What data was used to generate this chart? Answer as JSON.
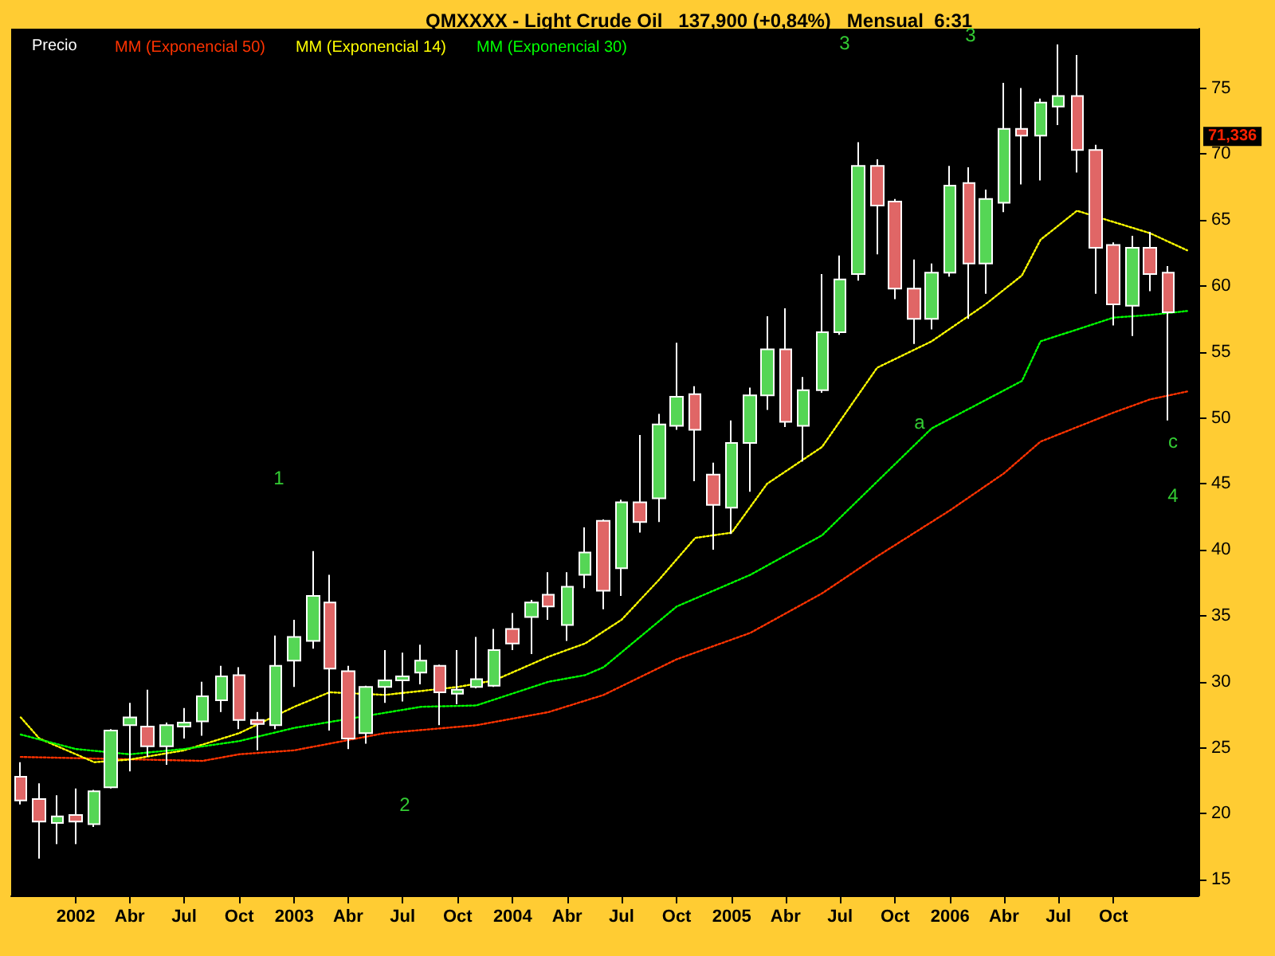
{
  "chart_data": {
    "type": "candlestick",
    "title": "QMXXXX - Light Crude Oil   137,900 (+0,84%)   Mensual  6:31",
    "x": [
      "2001-10",
      "2001-11",
      "2001-12",
      "2002-01",
      "2002-02",
      "2002-03",
      "2002-04",
      "2002-05",
      "2002-06",
      "2002-07",
      "2002-08",
      "2002-09",
      "2002-10",
      "2002-11",
      "2002-12",
      "2003-01",
      "2003-02",
      "2003-03",
      "2003-04",
      "2003-05",
      "2003-06",
      "2003-07",
      "2003-08",
      "2003-09",
      "2003-10",
      "2003-11",
      "2003-12",
      "2004-01",
      "2004-02",
      "2004-03",
      "2004-04",
      "2004-05",
      "2004-06",
      "2004-07",
      "2004-08",
      "2004-09",
      "2004-10",
      "2004-11",
      "2004-12",
      "2005-01",
      "2005-02",
      "2005-03",
      "2005-04",
      "2005-05",
      "2005-06",
      "2005-07",
      "2005-08",
      "2005-09",
      "2005-10",
      "2005-11",
      "2005-12",
      "2006-01",
      "2006-02",
      "2006-03",
      "2006-04",
      "2006-05",
      "2006-06",
      "2006-07",
      "2006-08",
      "2006-09",
      "2006-10",
      "2006-11",
      "2006-12",
      "2007-01"
    ],
    "ohlc": [
      [
        22.8,
        23.9,
        20.7,
        21.0
      ],
      [
        21.1,
        22.3,
        16.6,
        19.4
      ],
      [
        19.3,
        21.4,
        17.7,
        19.8
      ],
      [
        19.9,
        21.9,
        17.7,
        19.4
      ],
      [
        19.2,
        21.8,
        19.0,
        21.7
      ],
      [
        22.0,
        26.4,
        21.9,
        26.3
      ],
      [
        26.7,
        28.4,
        23.2,
        27.3
      ],
      [
        26.6,
        29.4,
        24.3,
        25.1
      ],
      [
        25.1,
        26.9,
        23.7,
        26.7
      ],
      [
        26.6,
        28.0,
        25.7,
        26.9
      ],
      [
        27.0,
        30.0,
        25.9,
        28.9
      ],
      [
        28.6,
        31.2,
        27.7,
        30.4
      ],
      [
        30.5,
        31.1,
        26.4,
        27.1
      ],
      [
        27.1,
        27.7,
        24.8,
        26.8
      ],
      [
        26.7,
        33.5,
        26.4,
        31.2
      ],
      [
        31.6,
        34.7,
        29.6,
        33.4
      ],
      [
        33.1,
        39.9,
        32.5,
        36.5
      ],
      [
        36.0,
        38.1,
        26.3,
        31.0
      ],
      [
        30.8,
        31.2,
        24.9,
        25.7
      ],
      [
        26.1,
        29.7,
        25.3,
        29.6
      ],
      [
        29.6,
        32.4,
        28.4,
        30.1
      ],
      [
        30.1,
        32.2,
        28.5,
        30.4
      ],
      [
        30.7,
        32.8,
        29.8,
        31.6
      ],
      [
        31.2,
        31.3,
        26.7,
        29.2
      ],
      [
        29.1,
        32.4,
        28.3,
        29.4
      ],
      [
        29.6,
        33.4,
        29.5,
        30.2
      ],
      [
        29.7,
        34.0,
        29.6,
        32.4
      ],
      [
        34.0,
        35.2,
        32.4,
        32.9
      ],
      [
        34.9,
        36.2,
        32.1,
        36.0
      ],
      [
        36.6,
        38.3,
        34.7,
        35.7
      ],
      [
        34.3,
        38.3,
        33.1,
        37.2
      ],
      [
        38.1,
        41.7,
        37.1,
        39.8
      ],
      [
        42.2,
        42.3,
        35.5,
        36.9
      ],
      [
        38.6,
        43.8,
        36.5,
        43.6
      ],
      [
        43.6,
        48.7,
        41.3,
        42.1
      ],
      [
        43.9,
        50.3,
        42.1,
        49.5
      ],
      [
        49.4,
        55.7,
        49.1,
        51.6
      ],
      [
        51.8,
        52.4,
        45.2,
        49.1
      ],
      [
        45.7,
        46.6,
        40.0,
        43.4
      ],
      [
        43.2,
        49.8,
        41.2,
        48.1
      ],
      [
        48.1,
        52.3,
        44.4,
        51.7
      ],
      [
        51.7,
        57.7,
        50.6,
        55.2
      ],
      [
        55.2,
        58.3,
        49.3,
        49.7
      ],
      [
        49.4,
        53.1,
        46.7,
        52.1
      ],
      [
        52.1,
        60.9,
        51.9,
        56.5
      ],
      [
        56.5,
        62.3,
        56.3,
        60.5
      ],
      [
        60.9,
        70.9,
        60.4,
        69.1
      ],
      [
        69.1,
        69.6,
        62.4,
        66.1
      ],
      [
        66.4,
        66.6,
        59.0,
        59.8
      ],
      [
        59.8,
        62.0,
        55.6,
        57.5
      ],
      [
        57.5,
        61.7,
        56.7,
        61.0
      ],
      [
        61.0,
        69.1,
        60.7,
        67.6
      ],
      [
        67.8,
        69.0,
        57.5,
        61.7
      ],
      [
        61.7,
        67.3,
        59.4,
        66.6
      ],
      [
        66.3,
        75.4,
        65.6,
        71.9
      ],
      [
        71.9,
        75.0,
        67.7,
        71.4
      ],
      [
        71.4,
        74.2,
        68.0,
        73.9
      ],
      [
        73.6,
        78.3,
        72.2,
        74.4
      ],
      [
        74.4,
        77.5,
        68.6,
        70.3
      ],
      [
        70.3,
        70.7,
        59.4,
        62.9
      ],
      [
        63.1,
        63.3,
        57.0,
        58.6
      ],
      [
        58.5,
        63.8,
        56.2,
        62.9
      ],
      [
        62.9,
        64.1,
        59.6,
        60.9
      ],
      [
        61.0,
        61.5,
        49.8,
        58.0
      ]
    ],
    "colors": [
      "#e06666",
      "#e06666",
      "#55d655",
      "#e06666",
      "#55d655",
      "#55d655",
      "#55d655",
      "#e06666",
      "#55d655",
      "#55d655",
      "#55d655",
      "#55d655",
      "#e06666",
      "#e06666",
      "#55d655",
      "#55d655",
      "#55d655",
      "#e06666",
      "#e06666",
      "#55d655",
      "#55d655",
      "#55d655",
      "#55d655",
      "#e06666",
      "#55d655",
      "#55d655",
      "#55d655",
      "#e06666",
      "#55d655",
      "#e06666",
      "#55d655",
      "#55d655",
      "#e06666",
      "#55d655",
      "#e06666",
      "#55d655",
      "#55d655",
      "#e06666",
      "#e06666",
      "#55d655",
      "#55d655",
      "#55d655",
      "#e06666",
      "#55d655",
      "#55d655",
      "#55d655",
      "#55d655",
      "#e06666",
      "#e06666",
      "#e06666",
      "#55d655",
      "#55d655",
      "#e06666",
      "#55d655",
      "#55d655",
      "#e06666",
      "#55d655",
      "#55d655",
      "#e06666",
      "#e06666",
      "#e06666",
      "#55d655",
      "#e06666",
      "#e06666"
    ],
    "series": [
      {
        "name": "MM (Exponencial 50)",
        "type": "line",
        "color": "#ff3300",
        "line_style": "dotted",
        "x": [
          "2001-10",
          "2002-08",
          "2002-10",
          "2003-01",
          "2003-06",
          "2003-11",
          "2004-03",
          "2004-06",
          "2004-10",
          "2005-02",
          "2005-06",
          "2005-09",
          "2006-01",
          "2006-04",
          "2006-06",
          "2006-10",
          "2006-12",
          "2007-02"
        ],
        "values": [
          24.3,
          24.0,
          24.5,
          24.8,
          26.1,
          26.7,
          27.7,
          29.0,
          31.7,
          33.7,
          36.7,
          39.5,
          43.0,
          45.8,
          48.2,
          50.4,
          51.4,
          52.0
        ]
      },
      {
        "name": "MM (Exponencial 14)",
        "type": "line",
        "color": "#ffff00",
        "line_style": "dotted",
        "x": [
          "2001-10",
          "2001-11",
          "2002-02",
          "2002-04",
          "2002-07",
          "2002-10",
          "2003-01",
          "2003-03",
          "2003-06",
          "2003-10",
          "2003-12",
          "2004-03",
          "2004-05",
          "2004-07",
          "2004-09",
          "2004-11",
          "2005-01",
          "2005-03",
          "2005-06",
          "2005-09",
          "2005-12",
          "2006-03",
          "2006-05",
          "2006-06",
          "2006-08",
          "2006-12",
          "2007-02"
        ],
        "values": [
          27.3,
          25.7,
          23.9,
          24.1,
          24.8,
          26.1,
          28.1,
          29.2,
          29.0,
          29.6,
          30.1,
          31.9,
          32.9,
          34.7,
          37.7,
          40.9,
          41.3,
          45.0,
          47.8,
          53.8,
          55.8,
          58.6,
          60.8,
          63.5,
          65.7,
          64.0,
          62.7
        ]
      },
      {
        "name": "MM (Exponencial 30)",
        "type": "line",
        "color": "#00ff00",
        "line_style": "dotted",
        "x": [
          "2001-10",
          "2002-01",
          "2002-04",
          "2002-07",
          "2002-10",
          "2003-01",
          "2003-08",
          "2003-11",
          "2004-03",
          "2004-05",
          "2004-06",
          "2004-10",
          "2005-02",
          "2005-06",
          "2005-08",
          "2005-12",
          "2006-05",
          "2006-06",
          "2006-10",
          "2006-12",
          "2007-02"
        ],
        "values": [
          26.0,
          24.9,
          24.5,
          24.9,
          25.5,
          26.5,
          28.1,
          28.2,
          30.0,
          30.5,
          31.1,
          35.7,
          38.1,
          41.1,
          43.8,
          49.2,
          52.8,
          55.8,
          57.6,
          57.8,
          58.1
        ]
      }
    ],
    "legend": "top left",
    "legend_title": "Precio",
    "xlim": [
      "2001-09-15",
      "2007-02-20"
    ],
    "xticks": [
      {
        "value": "2002-01",
        "label": "2002"
      },
      {
        "value": "2002-04",
        "label": "Abr"
      },
      {
        "value": "2002-07",
        "label": "Jul"
      },
      {
        "value": "2002-10",
        "label": "Oct"
      },
      {
        "value": "2003-01",
        "label": "2003"
      },
      {
        "value": "2003-04",
        "label": "Abr"
      },
      {
        "value": "2003-07",
        "label": "Jul"
      },
      {
        "value": "2003-10",
        "label": "Oct"
      },
      {
        "value": "2004-01",
        "label": "2004"
      },
      {
        "value": "2004-04",
        "label": "Abr"
      },
      {
        "value": "2004-07",
        "label": "Jul"
      },
      {
        "value": "2004-10",
        "label": "Oct"
      },
      {
        "value": "2005-01",
        "label": "2005"
      },
      {
        "value": "2005-04",
        "label": "Abr"
      },
      {
        "value": "2005-07",
        "label": "Jul"
      },
      {
        "value": "2005-10",
        "label": "Oct"
      },
      {
        "value": "2006-01",
        "label": "2006"
      },
      {
        "value": "2006-04",
        "label": "Abr"
      },
      {
        "value": "2006-07",
        "label": "Jul"
      },
      {
        "value": "2006-10",
        "label": "Oct"
      }
    ],
    "ylim": [
      13.8,
      79.5
    ],
    "yticks": [
      15,
      20,
      25,
      30,
      35,
      40,
      45,
      50,
      55,
      60,
      65,
      70,
      75
    ],
    "grid": false,
    "marker": "none",
    "annotations": [
      "1",
      "2",
      "3",
      "3",
      "a",
      "c",
      "4",
      {
        "text": "71,336",
        "y": 71.336
      }
    ]
  }
}
